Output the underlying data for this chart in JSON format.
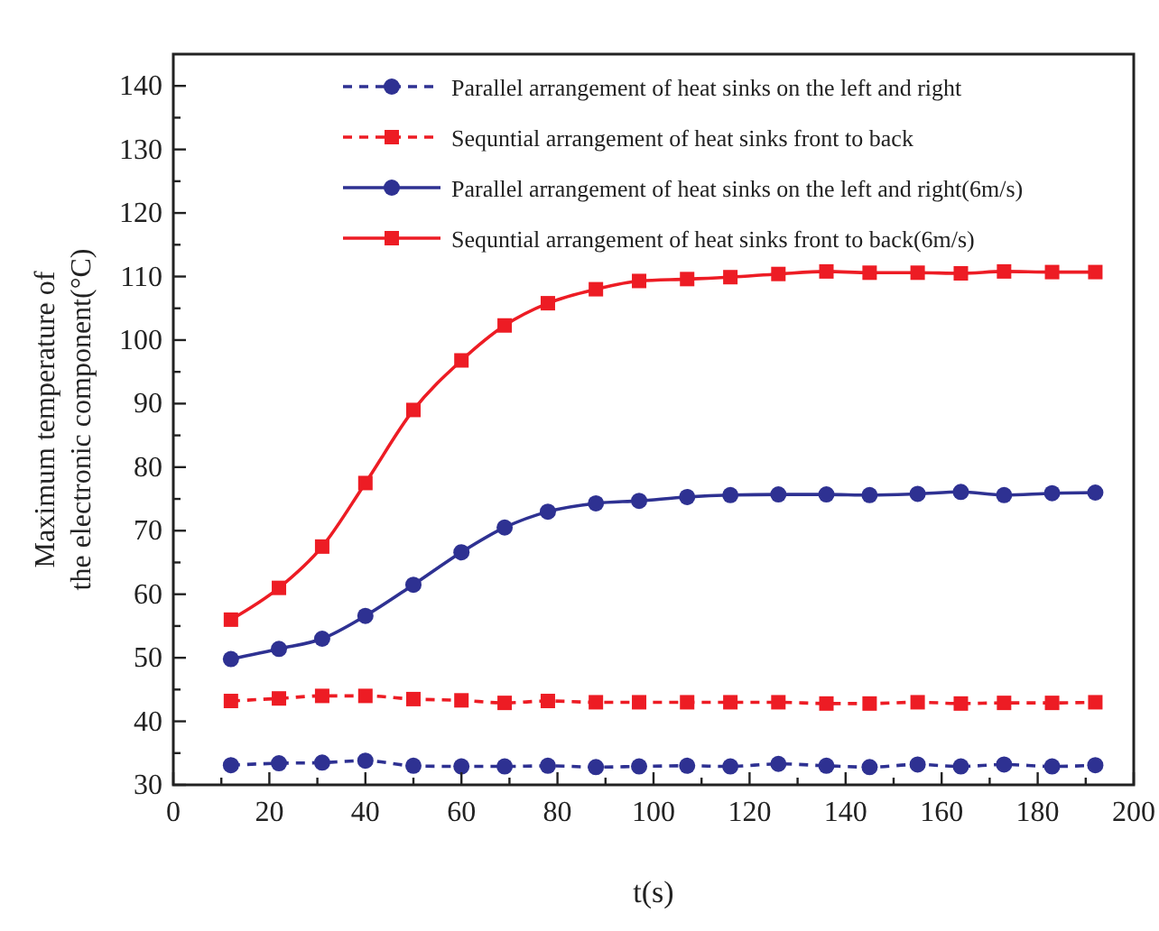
{
  "chart_data": {
    "type": "line",
    "xlabel": "t(s)",
    "ylabel": "Maximum temperature of\nthe electronic component(°C)",
    "xlim": [
      0,
      200
    ],
    "xticks": [
      0,
      {
        "value": 10,
        "label": null
      },
      20,
      {
        "value": 30,
        "label": null
      },
      40,
      {
        "value": 50,
        "label": null
      },
      60,
      {
        "value": 70,
        "label": null
      },
      80,
      {
        "value": 90,
        "label": null
      },
      100,
      {
        "value": 110,
        "label": null
      },
      120,
      {
        "value": 130,
        "label": null
      },
      140,
      {
        "value": 150,
        "label": null
      },
      160,
      {
        "value": 170,
        "label": null
      },
      180,
      {
        "value": 190,
        "label": null
      },
      200
    ],
    "ylim": [
      30,
      145
    ],
    "yticks": [
      30,
      {
        "value": 35,
        "label": null
      },
      40,
      {
        "value": 45,
        "label": null
      },
      50,
      {
        "value": 55,
        "label": null
      },
      60,
      {
        "value": 65,
        "label": null
      },
      70,
      {
        "value": 75,
        "label": null
      },
      80,
      {
        "value": 85,
        "label": null
      },
      90,
      {
        "value": 95,
        "label": null
      },
      100,
      {
        "value": 105,
        "label": null
      },
      110,
      {
        "value": 115,
        "label": null
      },
      120,
      {
        "value": 125,
        "label": null
      },
      130,
      {
        "value": 135,
        "label": null
      },
      140
    ],
    "x": [
      12,
      22,
      31,
      40,
      50,
      60,
      69,
      78,
      88,
      97,
      107,
      116,
      126,
      136,
      145,
      155,
      164,
      173,
      183,
      192
    ],
    "legend": "top",
    "grid": false,
    "series": [
      {
        "name": "Parallel arrangement of heat sinks on the left and right",
        "color": "#2e3192",
        "marker": "circle",
        "line_style": "dashed",
        "values": [
          33.1,
          33.4,
          33.5,
          33.8,
          33,
          32.9,
          32.9,
          33,
          32.8,
          32.9,
          33,
          32.9,
          33.3,
          33,
          32.8,
          33.2,
          32.9,
          33.2,
          32.9,
          33.1
        ]
      },
      {
        "name": "Sequntial arrangement of heat sinks front to back",
        "color": "#ed1c24",
        "marker": "square",
        "line_style": "dashed",
        "values": [
          43.2,
          43.6,
          44,
          44,
          43.5,
          43.3,
          42.9,
          43.2,
          43,
          43,
          43,
          43,
          43,
          42.8,
          42.8,
          43,
          42.8,
          42.9,
          42.9,
          43
        ]
      },
      {
        "name": "Parallel arrangement of heat sinks on the left and right(6m/s)",
        "color": "#2e3192",
        "marker": "circle",
        "line_style": "solid",
        "values": [
          49.8,
          51.4,
          53,
          56.6,
          61.5,
          66.6,
          70.5,
          73,
          74.3,
          74.7,
          75.3,
          75.6,
          75.7,
          75.7,
          75.6,
          75.8,
          76.1,
          75.6,
          75.9,
          76
        ]
      },
      {
        "name": "Sequntial arrangement of heat sinks front to back(6m/s)",
        "color": "#ed1c24",
        "marker": "square",
        "line_style": "solid",
        "values": [
          56,
          61,
          67.5,
          77.5,
          89,
          96.8,
          102.3,
          105.8,
          108,
          109.3,
          109.6,
          109.9,
          110.4,
          110.8,
          110.6,
          110.6,
          110.5,
          110.8,
          110.7,
          110.7
        ]
      }
    ]
  }
}
